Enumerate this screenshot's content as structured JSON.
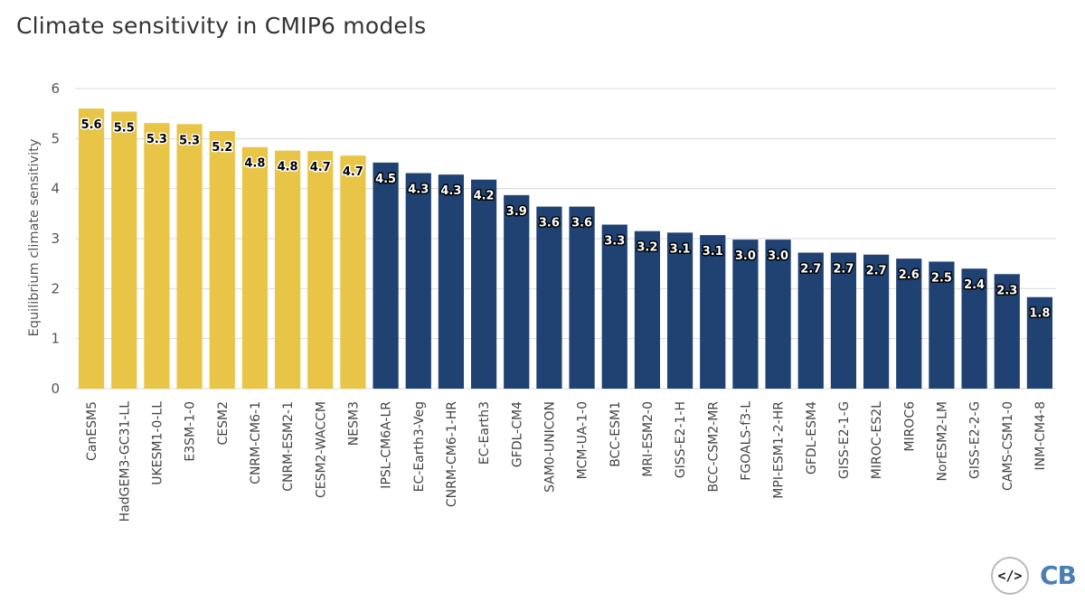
{
  "title": "Climate sensitivity in CMIP6 models",
  "embed_icon": "code-embed-icon",
  "logo_text": "CB",
  "colors": {
    "high": "#e8c547",
    "low": "#1f4272",
    "grid": "#d9d9d9"
  },
  "chart_data": {
    "type": "bar",
    "title": "Climate sensitivity in CMIP6 models",
    "xlabel": "",
    "ylabel": "Equilibrium climate sensitivity",
    "ylim": [
      0,
      6
    ],
    "yticks": [
      "0",
      "1",
      "2",
      "3",
      "4",
      "5",
      "6"
    ],
    "grid": true,
    "categories": [
      "CanESM5",
      "HadGEM3-GC31-LL",
      "UKESM1-0-LL",
      "E3SM-1-0",
      "CESM2",
      "CNRM-CM6-1",
      "CNRM-ESM2-1",
      "CESM2-WACCM",
      "NESM3",
      "IPSL-CM6A-LR",
      "EC-Earth3-Veg",
      "CNRM-CM6-1-HR",
      "EC-Earth3",
      "GFDL-CM4",
      "SAM0-UNICON",
      "MCM-UA-1-0",
      "BCC-ESM1",
      "MRI-ESM2-0",
      "GISS-E2-1-H",
      "BCC-CSM2-MR",
      "FGOALS-f3-L",
      "MPI-ESM1-2-HR",
      "GFDL-ESM4",
      "GISS-E2-1-G",
      "MIROC-ES2L",
      "MIROC6",
      "NorESM2-LM",
      "GISS-E2-2-G",
      "CAMS-CSM1-0",
      "INM-CM4-8"
    ],
    "values": [
      5.6,
      5.54,
      5.31,
      5.29,
      5.15,
      4.83,
      4.76,
      4.75,
      4.66,
      4.52,
      4.31,
      4.28,
      4.18,
      3.87,
      3.64,
      3.64,
      3.28,
      3.15,
      3.12,
      3.07,
      2.98,
      2.98,
      2.72,
      2.72,
      2.68,
      2.6,
      2.54,
      2.4,
      2.29,
      1.83
    ],
    "labels": [
      "5.6",
      "5.5",
      "5.3",
      "5.3",
      "5.2",
      "4.8",
      "4.8",
      "4.7",
      "4.7",
      "4.5",
      "4.3",
      "4.3",
      "4.2",
      "3.9",
      "3.6",
      "3.6",
      "3.3",
      "3.2",
      "3.1",
      "3.1",
      "3.0",
      "3.0",
      "2.7",
      "2.7",
      "2.7",
      "2.6",
      "2.5",
      "2.4",
      "2.3",
      "1.8"
    ],
    "highlight_count": 9
  }
}
